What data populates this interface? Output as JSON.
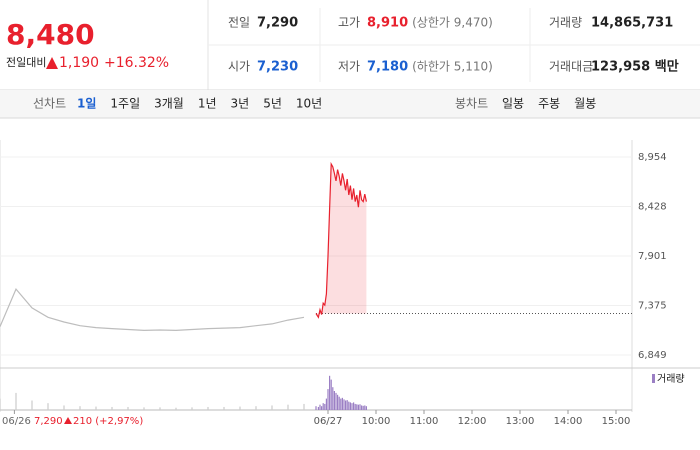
{
  "header": {
    "price": "8,480",
    "change_label": "전일대비",
    "change": "1,190",
    "change_pct": "+16.32%",
    "stats": [
      {
        "label": "전일",
        "value": "7,290"
      },
      {
        "label": "고가",
        "value": "8,910",
        "note": "(상한가 9,470)"
      },
      {
        "label": "거래량",
        "value": "14,865,731"
      },
      {
        "label": "시가",
        "value": "7,230"
      },
      {
        "label": "저가",
        "value": "7,180",
        "note": "(하한가 5,110)"
      },
      {
        "label": "거래대금",
        "value": "123,958 백만"
      }
    ]
  },
  "tabs": {
    "line_label": "선차트",
    "line": [
      "1일",
      "1주일",
      "3개월",
      "1년",
      "3년",
      "5년",
      "10년"
    ],
    "candle_label": "봉차트",
    "candle": [
      "일봉",
      "주봉",
      "월봉"
    ]
  },
  "footer": {
    "date": "06/26",
    "price": "7,290",
    "change": "210 (+2,97%)"
  },
  "chart_data": {
    "type": "line",
    "xlim": [
      -410,
      380
    ],
    "ylim": [
      6849,
      8954
    ],
    "yticks": [
      {
        "value": 8954,
        "label": "8,954"
      },
      {
        "value": 8428,
        "label": "8,428"
      },
      {
        "value": 7901,
        "label": "7,901"
      },
      {
        "value": 7375,
        "label": "7,375"
      },
      {
        "value": 6849,
        "label": "6,849"
      }
    ],
    "xticks": [
      {
        "value": -392,
        "label": "06/26"
      },
      {
        "value": 0,
        "label": "06/27"
      },
      {
        "value": 60,
        "label": "10:00"
      },
      {
        "value": 120,
        "label": "11:00"
      },
      {
        "value": 180,
        "label": "12:00"
      },
      {
        "value": 240,
        "label": "13:00"
      },
      {
        "value": 300,
        "label": "14:00"
      },
      {
        "value": 360,
        "label": "15:00"
      }
    ],
    "baseline": 7290,
    "series": [
      {
        "color": "#bdbdbd",
        "x": [
          -410,
          -390,
          -370,
          -350,
          -330,
          -310,
          -290,
          -270,
          -250,
          -230,
          -210,
          -190,
          -170,
          -150,
          -130,
          -110,
          -90,
          -70,
          -50,
          -30
        ],
        "values": [
          7150,
          7550,
          7350,
          7250,
          7200,
          7160,
          7140,
          7130,
          7120,
          7110,
          7115,
          7110,
          7120,
          7130,
          7135,
          7140,
          7160,
          7180,
          7220,
          7250
        ],
        "volume": [
          30,
          45,
          25,
          18,
          12,
          10,
          9,
          8,
          8,
          7,
          7,
          6,
          7,
          8,
          8,
          9,
          10,
          12,
          14,
          16
        ]
      },
      {
        "color": "#e8202d",
        "x": [
          -15,
          -12,
          -10,
          -8,
          -6,
          -4,
          -2,
          0,
          2,
          4,
          6,
          8,
          10,
          12,
          14,
          16,
          18,
          20,
          22,
          24,
          26,
          28,
          30,
          32,
          34,
          36,
          38,
          40,
          42,
          44,
          46,
          48
        ],
        "values": [
          7290,
          7250,
          7330,
          7280,
          7400,
          7380,
          7500,
          7900,
          8400,
          8880,
          8850,
          8780,
          8700,
          8820,
          8750,
          8650,
          8780,
          8700,
          8600,
          8720,
          8550,
          8650,
          8500,
          8620,
          8480,
          8550,
          8420,
          8600,
          8500,
          8480,
          8560,
          8480
        ],
        "volume": [
          10,
          8,
          14,
          10,
          18,
          16,
          30,
          55,
          90,
          80,
          60,
          50,
          45,
          40,
          35,
          30,
          32,
          28,
          25,
          26,
          22,
          20,
          18,
          20,
          16,
          15,
          14,
          15,
          12,
          11,
          12,
          10
        ]
      }
    ],
    "volume_name": "거래량",
    "volume_color": "#9b7fc4",
    "volume_ylim": [
      0,
      100
    ]
  }
}
